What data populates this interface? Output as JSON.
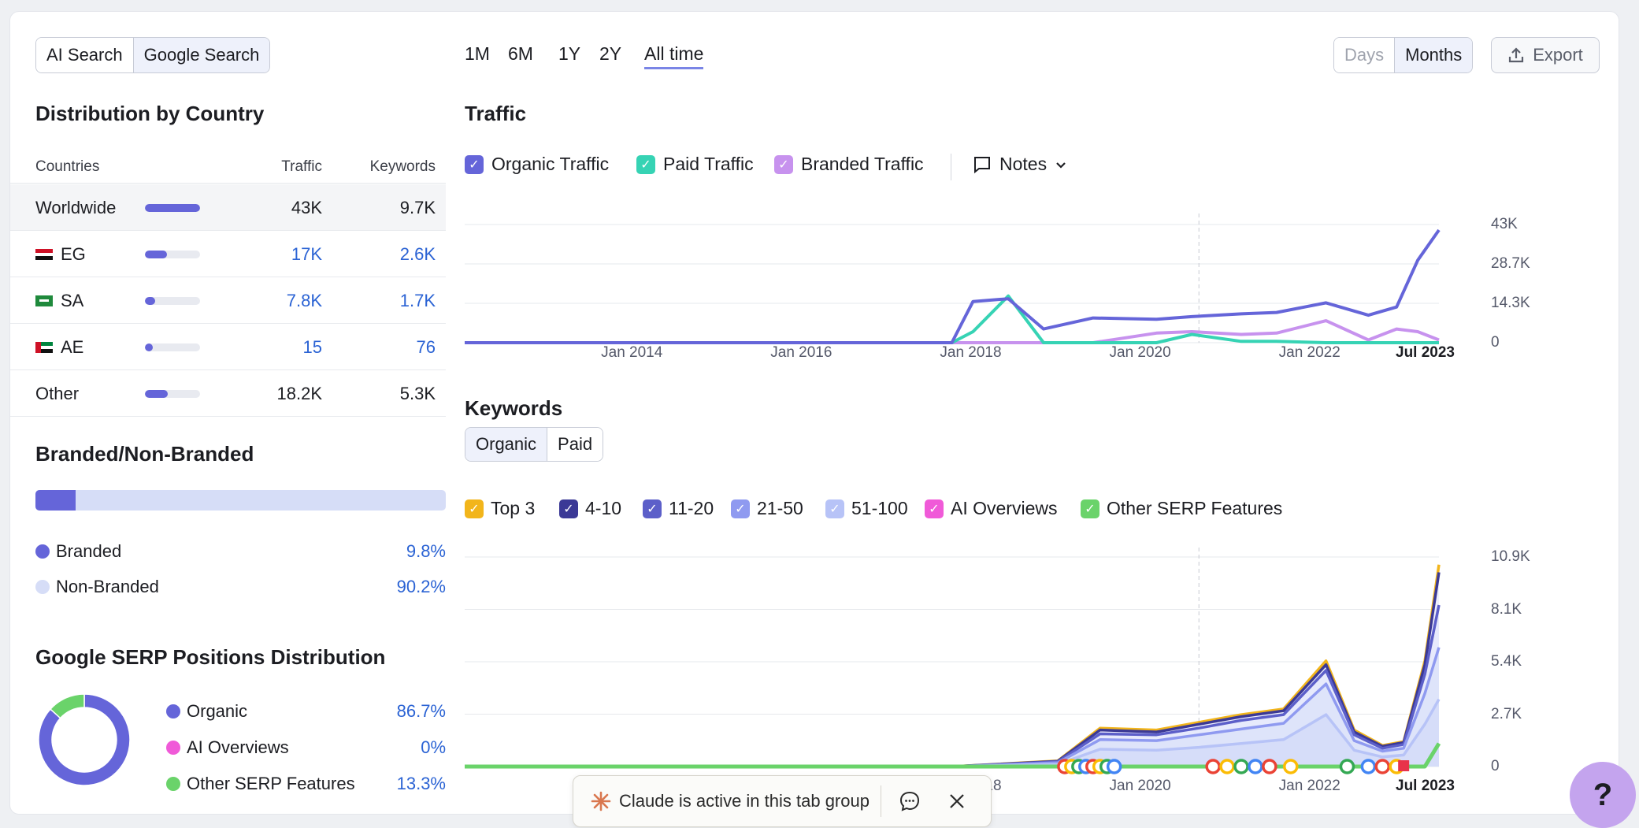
{
  "tabs": {
    "ai_search": "AI Search",
    "google_search": "Google Search"
  },
  "ranges": [
    "1M",
    "6M",
    "1Y",
    "2Y",
    "All time"
  ],
  "granularity": {
    "days": "Days",
    "months": "Months"
  },
  "export_label": "Export",
  "country": {
    "title": "Distribution by Country",
    "headers": {
      "countries": "Countries",
      "traffic": "Traffic",
      "keywords": "Keywords"
    },
    "rows": [
      {
        "name": "Worldwide",
        "traffic": "43K",
        "keywords": "9.7K",
        "share": 1.0
      },
      {
        "name": "EG",
        "traffic": "17K",
        "keywords": "2.6K",
        "share": 0.4
      },
      {
        "name": "SA",
        "traffic": "7.8K",
        "keywords": "1.7K",
        "share": 0.18
      },
      {
        "name": "AE",
        "traffic": "15",
        "keywords": "76",
        "share": 0.01
      },
      {
        "name": "Other",
        "traffic": "18.2K",
        "keywords": "5.3K",
        "share": 0.42
      }
    ]
  },
  "branded": {
    "title": "Branded/Non-Branded",
    "branded_label": "Branded",
    "branded_value": "9.8%",
    "branded_share": 0.098,
    "nonbranded_label": "Non-Branded",
    "nonbranded_value": "90.2%"
  },
  "serp": {
    "title": "Google SERP Positions Distribution",
    "items": [
      {
        "label": "Organic",
        "value": "86.7%",
        "color": "#6565d9",
        "share": 0.867
      },
      {
        "label": "AI Overviews",
        "value": "0%",
        "color": "#f05ad8",
        "share": 0.0
      },
      {
        "label": "Other SERP Features",
        "value": "13.3%",
        "color": "#6ad36a",
        "share": 0.133
      }
    ]
  },
  "traffic": {
    "title": "Traffic",
    "legend": [
      {
        "label": "Organic Traffic",
        "color": "#6565d9"
      },
      {
        "label": "Paid Traffic",
        "color": "#36d3b4"
      },
      {
        "label": "Branded Traffic",
        "color": "#c792ee"
      }
    ],
    "notes_label": "Notes"
  },
  "keywords": {
    "title": "Keywords",
    "toggle": {
      "organic": "Organic",
      "paid": "Paid"
    },
    "legend": [
      {
        "label": "Top 3",
        "color": "#f2b51b"
      },
      {
        "label": "4-10",
        "color": "#3b3996"
      },
      {
        "label": "11-20",
        "color": "#5c5fc9"
      },
      {
        "label": "21-50",
        "color": "#8f9af0"
      },
      {
        "label": "51-100",
        "color": "#b7c3f7"
      },
      {
        "label": "AI Overviews",
        "color": "#f05ad8"
      },
      {
        "label": "Other SERP Features",
        "color": "#6ad36a"
      }
    ]
  },
  "chart_data": [
    {
      "type": "line",
      "title": "Traffic",
      "x_ticks": [
        "Jan 2014",
        "Jan 2016",
        "Jan 2018",
        "Jan 2020",
        "Jan 2022",
        "Jul 2023"
      ],
      "y_ticks": [
        "43K",
        "28.7K",
        "14.3K",
        "0"
      ],
      "ylim": [
        0,
        43000
      ],
      "x": [
        "2012-01",
        "2017-10",
        "2018-01",
        "2018-06",
        "2018-11",
        "2019-06",
        "2020-03",
        "2020-08",
        "2021-03",
        "2021-08",
        "2022-03",
        "2022-09",
        "2023-01",
        "2023-04",
        "2023-07"
      ],
      "series": [
        {
          "name": "Organic Traffic",
          "values": [
            0,
            0,
            15000,
            16000,
            5000,
            9000,
            8500,
            9500,
            10500,
            11000,
            14500,
            10000,
            13000,
            30000,
            41000
          ]
        },
        {
          "name": "Paid Traffic",
          "values": [
            0,
            0,
            4000,
            17000,
            0,
            0,
            0,
            3000,
            500,
            500,
            0,
            0,
            0,
            0,
            0
          ]
        },
        {
          "name": "Branded Traffic",
          "values": [
            0,
            0,
            0,
            0,
            0,
            0,
            3500,
            4000,
            3000,
            3500,
            8000,
            1000,
            5000,
            4000,
            1000
          ]
        }
      ]
    },
    {
      "type": "area",
      "title": "Keywords",
      "x_ticks": [
        "Jan 2014",
        "Jan 2016",
        "Jan 2018",
        "Jan 2020",
        "Jan 2022",
        "Jul 2023"
      ],
      "y_ticks": [
        "10.9K",
        "8.1K",
        "5.4K",
        "2.7K",
        "0"
      ],
      "ylim": [
        0,
        10900
      ],
      "x": [
        "2012-01",
        "2017-10",
        "2019-01",
        "2019-07",
        "2020-03",
        "2020-09",
        "2021-03",
        "2021-09",
        "2022-03",
        "2022-07",
        "2022-11",
        "2023-02",
        "2023-05",
        "2023-07"
      ],
      "series": [
        {
          "name": "Top 3",
          "values": [
            0,
            0,
            300,
            2000,
            1900,
            2300,
            2700,
            3000,
            5500,
            1900,
            1100,
            1300,
            5500,
            10500
          ]
        },
        {
          "name": "4-10",
          "values": [
            0,
            0,
            280,
            1900,
            1800,
            2200,
            2600,
            2900,
            5300,
            1800,
            1050,
            1250,
            5300,
            10100
          ]
        },
        {
          "name": "11-20",
          "values": [
            0,
            0,
            250,
            1700,
            1650,
            2000,
            2400,
            2700,
            5000,
            1650,
            950,
            1150,
            4800,
            8400
          ]
        },
        {
          "name": "21-50",
          "values": [
            0,
            0,
            200,
            1400,
            1350,
            1650,
            1950,
            2250,
            4300,
            1350,
            800,
            950,
            3800,
            6200
          ]
        },
        {
          "name": "51-100",
          "values": [
            0,
            0,
            120,
            900,
            850,
            1000,
            1200,
            1400,
            2700,
            850,
            500,
            600,
            2200,
            3500
          ]
        },
        {
          "name": "Other SERP Features",
          "values": [
            0,
            0,
            0,
            0,
            0,
            0,
            0,
            0,
            0,
            0,
            0,
            0,
            0,
            1200
          ]
        }
      ]
    }
  ],
  "toast": {
    "text": "Claude is active in this tab group"
  },
  "help_label": "?"
}
